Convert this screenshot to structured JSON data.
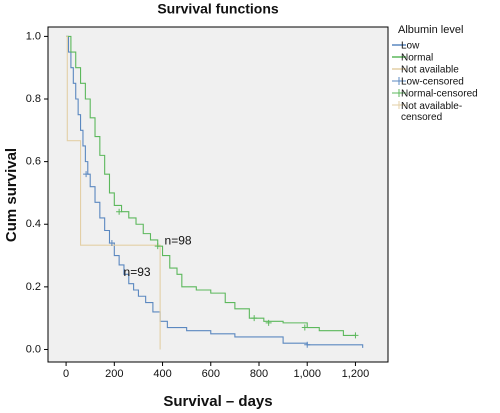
{
  "chart_data": {
    "type": "step",
    "title": "Survival functions",
    "xlabel": "Survival – days",
    "ylabel": "Cum survival",
    "legend_title": "Albumin level",
    "annotations": [
      "n=98",
      "n=93"
    ],
    "xlim": [
      -75,
      1335
    ],
    "ylim": [
      -0.04,
      1.03
    ],
    "xticks": [
      0,
      200,
      400,
      600,
      800,
      {
        "value": 1000,
        "label": "1,000"
      },
      {
        "value": 1200,
        "label": "1,200"
      }
    ],
    "yticks": [
      {
        "value": 0,
        "label": "0.0"
      },
      {
        "value": 0.2,
        "label": "0.2"
      },
      {
        "value": 0.4,
        "label": "0.4"
      },
      {
        "value": 0.6,
        "label": "0.6"
      },
      {
        "value": 0.8,
        "label": "0.8"
      },
      {
        "value": 1,
        "label": "1.0"
      }
    ],
    "series": [
      {
        "name": "Low",
        "color": "#5b88c0",
        "censored": false,
        "x": [
          0,
          10,
          20,
          30,
          40,
          50,
          60,
          70,
          80,
          90,
          100,
          120,
          140,
          160,
          180,
          200,
          220,
          240,
          260,
          280,
          300,
          330,
          360,
          390,
          420,
          500,
          600,
          700,
          900,
          1000,
          1230
        ],
        "values": [
          1,
          0.95,
          0.9,
          0.85,
          0.8,
          0.75,
          0.7,
          0.65,
          0.6,
          0.56,
          0.52,
          0.47,
          0.42,
          0.38,
          0.34,
          0.3,
          0.27,
          0.24,
          0.21,
          0.19,
          0.17,
          0.15,
          0.12,
          0.09,
          0.07,
          0.06,
          0.05,
          0.04,
          0.02,
          0.015,
          0.005
        ]
      },
      {
        "name": "Normal",
        "color": "#5cb85c",
        "censored": false,
        "x": [
          0,
          20,
          40,
          60,
          80,
          100,
          120,
          140,
          160,
          180,
          200,
          230,
          260,
          290,
          320,
          350,
          380,
          400,
          430,
          460,
          480,
          540,
          600,
          660,
          700,
          760,
          820,
          900,
          1000,
          1050,
          1150,
          1200
        ],
        "values": [
          1,
          0.95,
          0.9,
          0.85,
          0.8,
          0.74,
          0.68,
          0.62,
          0.56,
          0.5,
          0.46,
          0.44,
          0.42,
          0.4,
          0.37,
          0.35,
          0.33,
          0.3,
          0.26,
          0.24,
          0.2,
          0.19,
          0.18,
          0.15,
          0.13,
          0.1,
          0.09,
          0.085,
          0.07,
          0.06,
          0.045,
          0.045
        ]
      },
      {
        "name": "Not available",
        "color": "#e3cfa6",
        "censored": false,
        "x": [
          0,
          5,
          60,
          390
        ],
        "values": [
          1,
          0.667,
          0.333,
          0
        ]
      },
      {
        "name": "Low-censored",
        "color": "#5b88c0",
        "censored": true,
        "x": [
          83,
          190,
          1000
        ],
        "values": [
          0.56,
          0.34,
          0.015
        ]
      },
      {
        "name": "Normal-censored",
        "color": "#5cb85c",
        "censored": true,
        "x": [
          220,
          380,
          780,
          840,
          990,
          1200
        ],
        "values": [
          0.44,
          0.33,
          0.1,
          0.085,
          0.07,
          0.045
        ]
      },
      {
        "name": "Not available-censored",
        "color": "#e3cfa6",
        "censored": true,
        "x": [],
        "values": []
      }
    ]
  }
}
